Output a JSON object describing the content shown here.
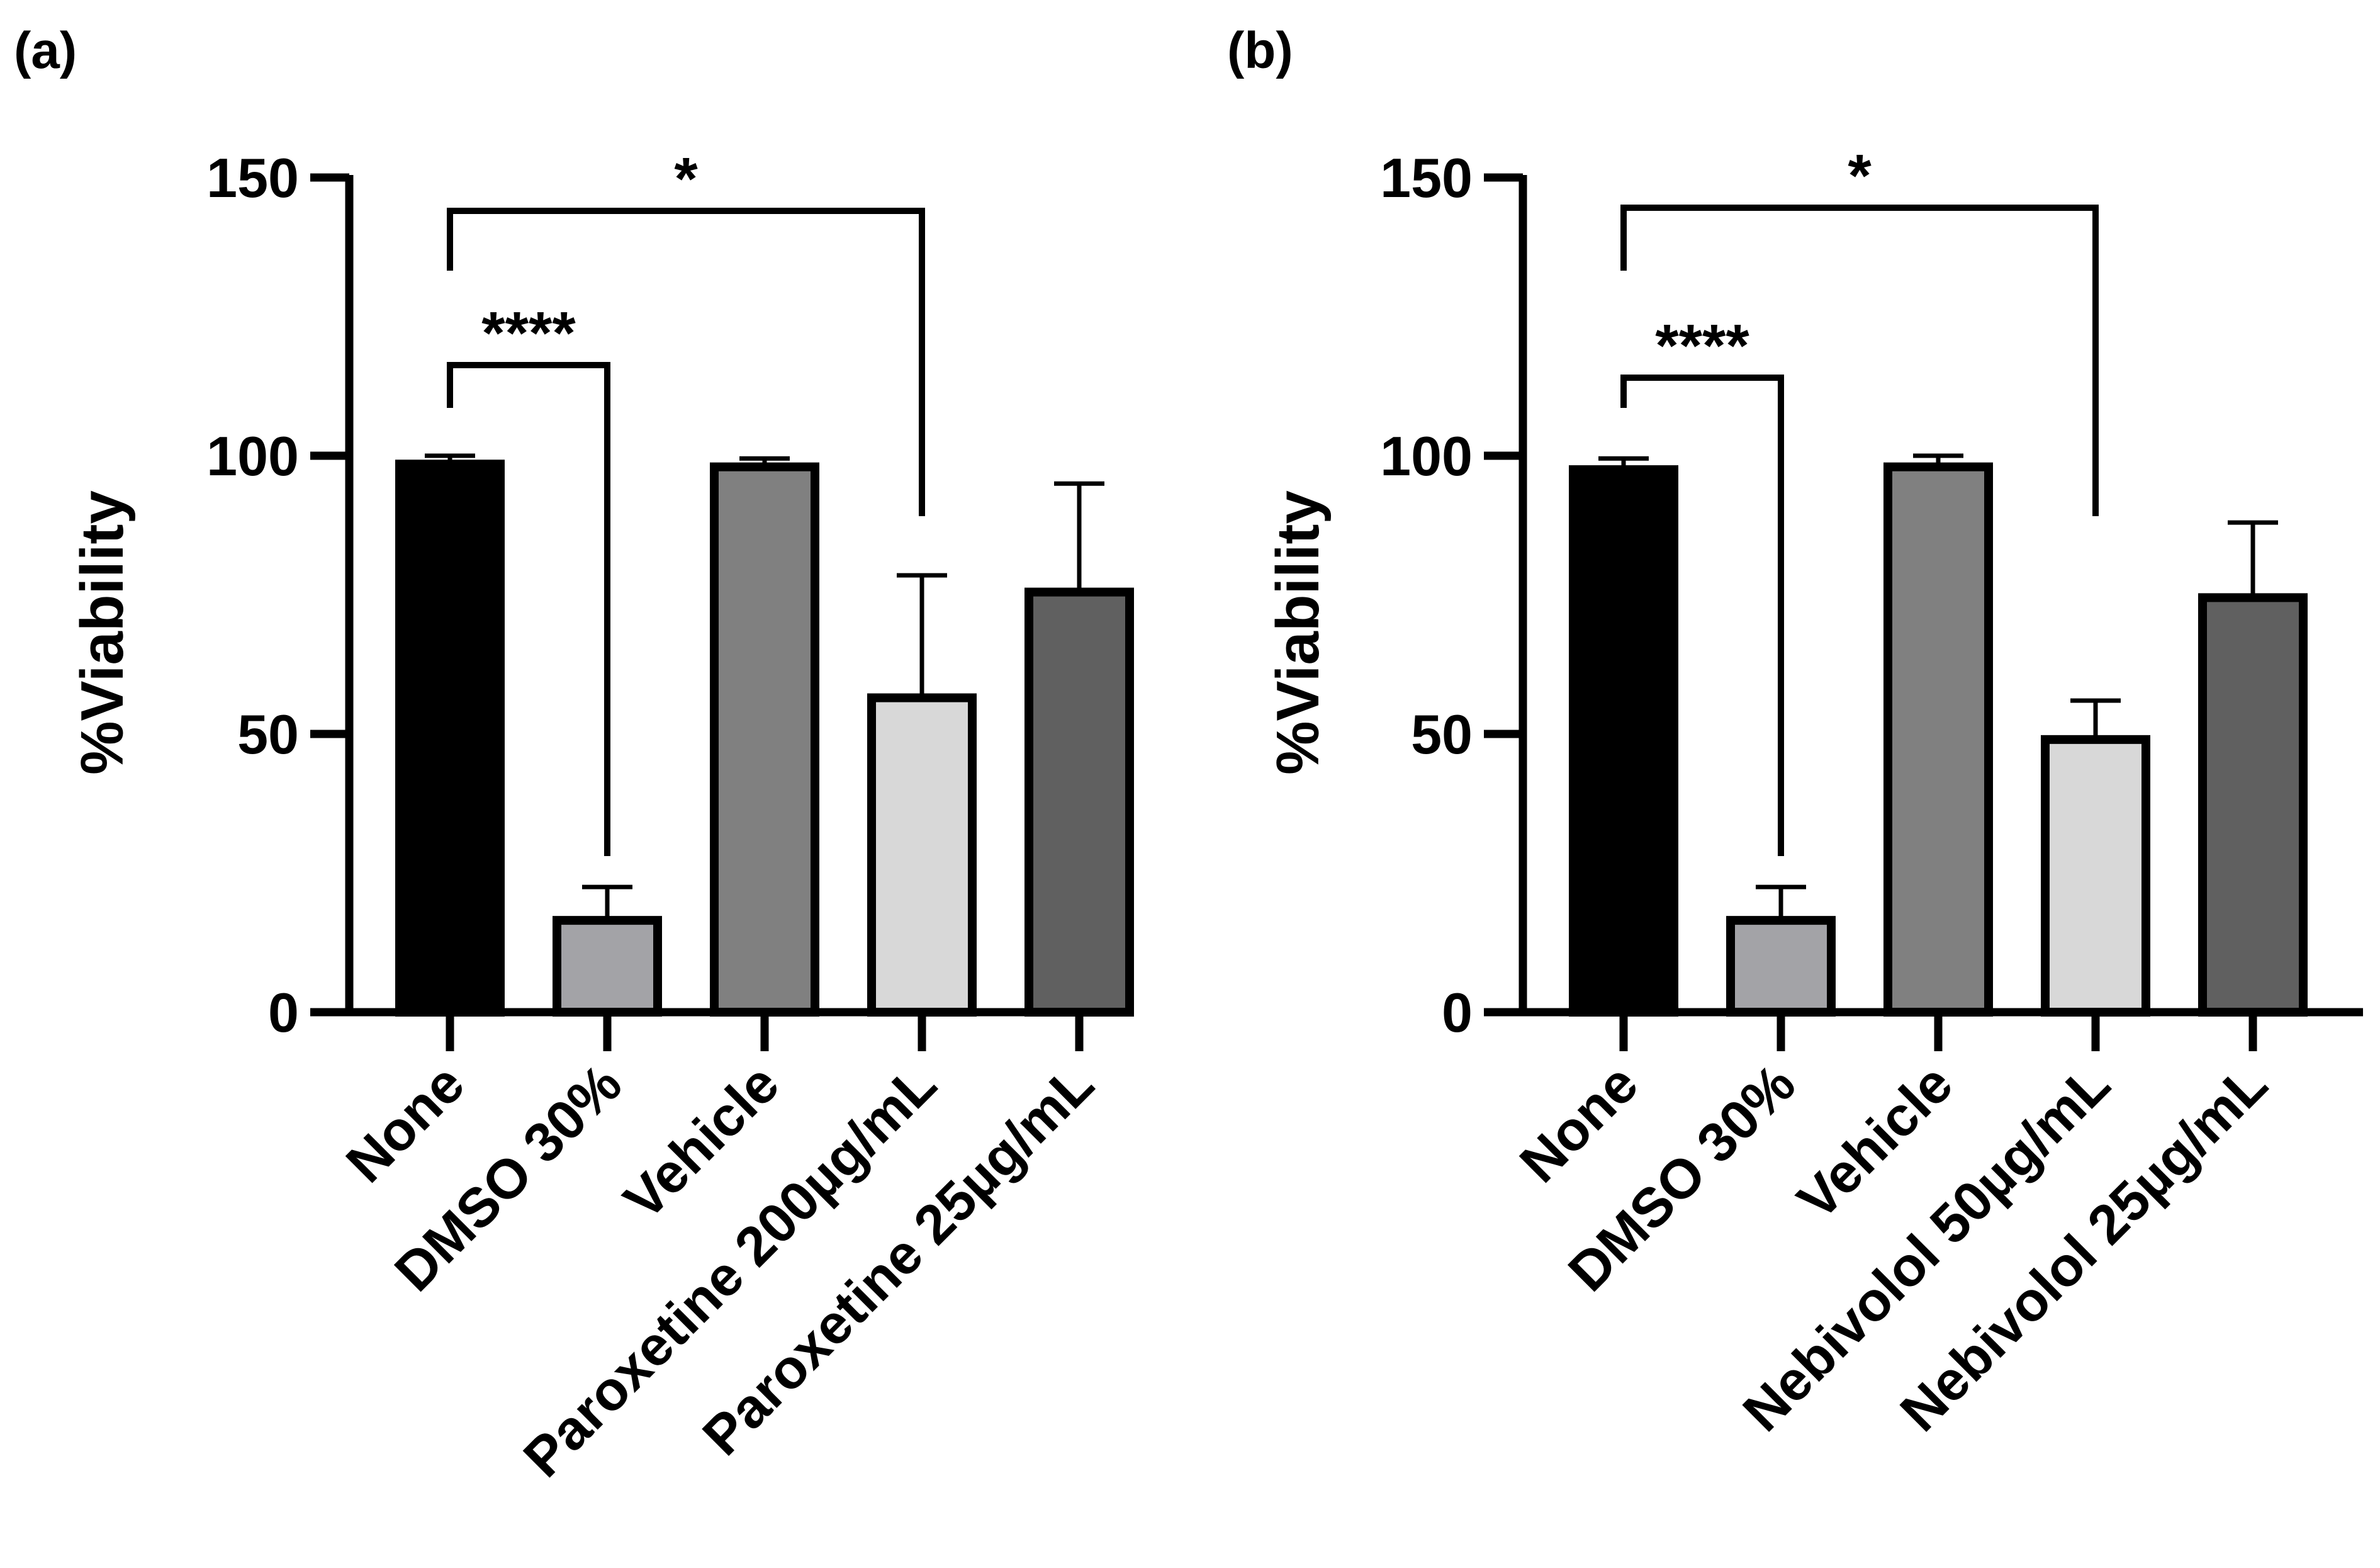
{
  "chart_data": [
    {
      "panel": "(a)",
      "type": "bar",
      "ylabel": "%Viability",
      "ylim": [
        0,
        150
      ],
      "yticks": [
        0,
        50,
        100,
        150
      ],
      "grid": false,
      "categories": [
        "None",
        "DMSO 30%",
        "Vehicle",
        "Paroxetine 200µg/mL",
        "Paroxetine 25µg/mL"
      ],
      "values": [
        98.5,
        16.5,
        98,
        56.5,
        75.5
      ],
      "errors": [
        1.5,
        6,
        1.5,
        22,
        19.5
      ],
      "bar_colors": [
        "#000000",
        "#a3a3a7",
        "#808080",
        "#d8d8d8",
        "#606060"
      ],
      "significance": [
        {
          "from": 0,
          "to": 3,
          "label": "*",
          "tier": 2
        },
        {
          "from": 0,
          "to": 1,
          "label": "****",
          "tier": 1
        }
      ]
    },
    {
      "panel": "(b)",
      "type": "bar",
      "ylabel": "%Viability",
      "ylim": [
        0,
        150
      ],
      "yticks": [
        0,
        50,
        100,
        150
      ],
      "grid": false,
      "categories": [
        "None",
        "DMSO 30%",
        "Vehicle",
        "Nebivolol 50µg/mL",
        "Nebivolol 25µg/mL"
      ],
      "values": [
        97.5,
        16.5,
        98,
        49,
        74.5
      ],
      "errors": [
        2,
        6,
        2,
        7,
        13.5
      ],
      "bar_colors": [
        "#000000",
        "#a3a3a7",
        "#808080",
        "#d8d8d8",
        "#606060"
      ],
      "significance": [
        {
          "from": 0,
          "to": 3,
          "label": "*",
          "tier": 2
        },
        {
          "from": 0,
          "to": 1,
          "label": "****",
          "tier": 1
        }
      ]
    }
  ]
}
